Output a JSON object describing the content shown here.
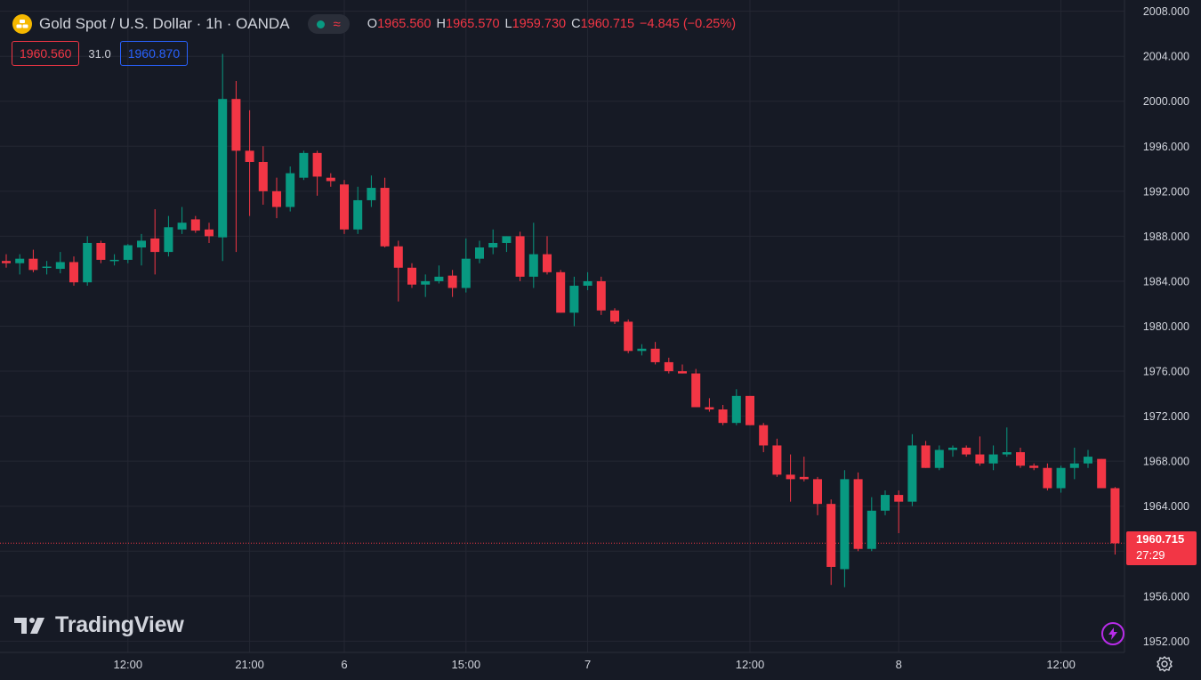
{
  "symbol": {
    "title": "Gold Spot / U.S. Dollar · 1h · OANDA",
    "status_icon": "green-dot-icon",
    "wave_icon": "wave-icon"
  },
  "ohlc": {
    "o_label": "O",
    "o_value": "1965.560",
    "h_label": "H",
    "h_value": "1965.570",
    "l_label": "L",
    "l_value": "1959.730",
    "c_label": "C",
    "c_value": "1960.715",
    "change": "−4.845 (−0.25%)"
  },
  "quote": {
    "bid": "1960.560",
    "spread": "31.0",
    "ask": "1960.870"
  },
  "last_price": {
    "value": "1960.715",
    "countdown": "27:29"
  },
  "brand": {
    "logo_text": "TradingView"
  },
  "colors": {
    "background": "#161a25",
    "up": "#089981",
    "down": "#f23645",
    "grid": "#242733",
    "text": "#d1d4dc",
    "ask": "#2962ff"
  },
  "chart_data": {
    "type": "candlestick",
    "timeframe": "1h",
    "y_axis_ticks": [
      "1952.000",
      "1956.000",
      "1960.000",
      "1964.000",
      "1968.000",
      "1972.000",
      "1976.000",
      "1980.000",
      "1984.000",
      "1988.000",
      "1992.000",
      "1996.000",
      "2000.000",
      "2004.000",
      "2008.000"
    ],
    "ylim": [
      1951.0,
      2009.0
    ],
    "x_axis_labels": [
      {
        "label": "12:00",
        "index": 9
      },
      {
        "label": "21:00",
        "index": 18
      },
      {
        "label": "6",
        "index": 25
      },
      {
        "label": "15:00",
        "index": 34
      },
      {
        "label": "7",
        "index": 43
      },
      {
        "label": "12:00",
        "index": 55
      },
      {
        "label": "8",
        "index": 66
      },
      {
        "label": "12:00",
        "index": 78
      }
    ],
    "grid": true,
    "last_price_line": 1960.715,
    "candles": [
      {
        "o": 1985.8,
        "h": 1986.4,
        "l": 1985.2,
        "c": 1985.6
      },
      {
        "o": 1985.6,
        "h": 1986.4,
        "l": 1984.6,
        "c": 1986.0
      },
      {
        "o": 1986.0,
        "h": 1986.8,
        "l": 1984.8,
        "c": 1985.0
      },
      {
        "o": 1985.2,
        "h": 1985.8,
        "l": 1984.6,
        "c": 1985.3
      },
      {
        "o": 1985.1,
        "h": 1986.6,
        "l": 1984.7,
        "c": 1985.7
      },
      {
        "o": 1985.7,
        "h": 1986.2,
        "l": 1983.6,
        "c": 1983.9
      },
      {
        "o": 1983.9,
        "h": 1988.0,
        "l": 1983.6,
        "c": 1987.4
      },
      {
        "o": 1987.4,
        "h": 1987.6,
        "l": 1985.6,
        "c": 1985.9
      },
      {
        "o": 1985.8,
        "h": 1986.4,
        "l": 1985.4,
        "c": 1985.9
      },
      {
        "o": 1985.9,
        "h": 1987.3,
        "l": 1985.6,
        "c": 1987.2
      },
      {
        "o": 1987.0,
        "h": 1988.2,
        "l": 1985.4,
        "c": 1987.6
      },
      {
        "o": 1987.8,
        "h": 1990.4,
        "l": 1984.6,
        "c": 1986.6
      },
      {
        "o": 1986.6,
        "h": 1989.8,
        "l": 1986.2,
        "c": 1988.8
      },
      {
        "o": 1988.6,
        "h": 1990.6,
        "l": 1988.2,
        "c": 1989.2
      },
      {
        "o": 1989.5,
        "h": 1989.8,
        "l": 1988.3,
        "c": 1988.5
      },
      {
        "o": 1988.6,
        "h": 1989.2,
        "l": 1987.4,
        "c": 1988.0
      },
      {
        "o": 1987.9,
        "h": 2004.2,
        "l": 1985.8,
        "c": 2000.2
      },
      {
        "o": 2000.2,
        "h": 2001.8,
        "l": 1986.6,
        "c": 1995.6
      },
      {
        "o": 1995.6,
        "h": 1999.2,
        "l": 1989.8,
        "c": 1994.6
      },
      {
        "o": 1994.6,
        "h": 1996.0,
        "l": 1990.8,
        "c": 1992.0
      },
      {
        "o": 1992.0,
        "h": 1993.2,
        "l": 1989.6,
        "c": 1990.6
      },
      {
        "o": 1990.6,
        "h": 1994.2,
        "l": 1990.2,
        "c": 1993.6
      },
      {
        "o": 1993.2,
        "h": 1995.6,
        "l": 1993.0,
        "c": 1995.4
      },
      {
        "o": 1995.4,
        "h": 1995.6,
        "l": 1991.6,
        "c": 1993.3
      },
      {
        "o": 1993.2,
        "h": 1993.6,
        "l": 1992.4,
        "c": 1992.9
      },
      {
        "o": 1992.6,
        "h": 1993.0,
        "l": 1988.2,
        "c": 1988.6
      },
      {
        "o": 1988.6,
        "h": 1992.4,
        "l": 1988.2,
        "c": 1991.2
      },
      {
        "o": 1991.2,
        "h": 1993.4,
        "l": 1990.6,
        "c": 1992.3
      },
      {
        "o": 1992.3,
        "h": 1993.2,
        "l": 1987.0,
        "c": 1987.1
      },
      {
        "o": 1987.1,
        "h": 1987.6,
        "l": 1982.2,
        "c": 1985.2
      },
      {
        "o": 1985.2,
        "h": 1985.6,
        "l": 1983.4,
        "c": 1983.7
      },
      {
        "o": 1983.7,
        "h": 1984.6,
        "l": 1982.6,
        "c": 1984.0
      },
      {
        "o": 1984.0,
        "h": 1985.4,
        "l": 1983.8,
        "c": 1984.4
      },
      {
        "o": 1984.5,
        "h": 1985.0,
        "l": 1982.6,
        "c": 1983.4
      },
      {
        "o": 1983.4,
        "h": 1987.8,
        "l": 1983.0,
        "c": 1986.0
      },
      {
        "o": 1986.0,
        "h": 1987.6,
        "l": 1985.6,
        "c": 1987.0
      },
      {
        "o": 1987.0,
        "h": 1988.6,
        "l": 1986.4,
        "c": 1987.4
      },
      {
        "o": 1987.4,
        "h": 1988.0,
        "l": 1986.6,
        "c": 1988.0
      },
      {
        "o": 1988.0,
        "h": 1988.4,
        "l": 1984.0,
        "c": 1984.4
      },
      {
        "o": 1984.4,
        "h": 1989.2,
        "l": 1983.4,
        "c": 1986.4
      },
      {
        "o": 1986.4,
        "h": 1988.0,
        "l": 1984.6,
        "c": 1984.8
      },
      {
        "o": 1984.8,
        "h": 1985.0,
        "l": 1981.2,
        "c": 1981.2
      },
      {
        "o": 1981.2,
        "h": 1984.4,
        "l": 1980.0,
        "c": 1983.6
      },
      {
        "o": 1983.6,
        "h": 1984.8,
        "l": 1983.2,
        "c": 1984.0
      },
      {
        "o": 1984.0,
        "h": 1984.4,
        "l": 1981.0,
        "c": 1981.4
      },
      {
        "o": 1981.4,
        "h": 1981.6,
        "l": 1980.2,
        "c": 1980.4
      },
      {
        "o": 1980.4,
        "h": 1980.6,
        "l": 1977.6,
        "c": 1977.8
      },
      {
        "o": 1977.8,
        "h": 1978.4,
        "l": 1977.4,
        "c": 1978.0
      },
      {
        "o": 1978.0,
        "h": 1978.6,
        "l": 1976.6,
        "c": 1976.8
      },
      {
        "o": 1976.8,
        "h": 1977.2,
        "l": 1975.8,
        "c": 1976.0
      },
      {
        "o": 1976.0,
        "h": 1976.6,
        "l": 1975.8,
        "c": 1975.8
      },
      {
        "o": 1975.8,
        "h": 1976.2,
        "l": 1972.8,
        "c": 1972.8
      },
      {
        "o": 1972.8,
        "h": 1973.6,
        "l": 1972.4,
        "c": 1972.6
      },
      {
        "o": 1972.6,
        "h": 1973.0,
        "l": 1971.2,
        "c": 1971.4
      },
      {
        "o": 1971.4,
        "h": 1974.4,
        "l": 1971.2,
        "c": 1973.8
      },
      {
        "o": 1973.8,
        "h": 1973.8,
        "l": 1971.2,
        "c": 1971.2
      },
      {
        "o": 1971.2,
        "h": 1971.4,
        "l": 1968.8,
        "c": 1969.4
      },
      {
        "o": 1969.4,
        "h": 1970.0,
        "l": 1966.6,
        "c": 1966.8
      },
      {
        "o": 1966.8,
        "h": 1968.6,
        "l": 1964.4,
        "c": 1966.4
      },
      {
        "o": 1966.6,
        "h": 1968.4,
        "l": 1966.2,
        "c": 1966.4
      },
      {
        "o": 1966.4,
        "h": 1966.6,
        "l": 1963.2,
        "c": 1964.2
      },
      {
        "o": 1964.2,
        "h": 1964.6,
        "l": 1957.0,
        "c": 1958.6
      },
      {
        "o": 1958.4,
        "h": 1967.2,
        "l": 1956.8,
        "c": 1966.4
      },
      {
        "o": 1966.4,
        "h": 1967.0,
        "l": 1960.0,
        "c": 1960.2
      },
      {
        "o": 1960.2,
        "h": 1964.8,
        "l": 1960.0,
        "c": 1963.6
      },
      {
        "o": 1963.6,
        "h": 1965.4,
        "l": 1963.2,
        "c": 1965.0
      },
      {
        "o": 1965.0,
        "h": 1965.4,
        "l": 1961.6,
        "c": 1964.4
      },
      {
        "o": 1964.4,
        "h": 1970.4,
        "l": 1964.0,
        "c": 1969.4
      },
      {
        "o": 1969.4,
        "h": 1969.8,
        "l": 1967.4,
        "c": 1967.4
      },
      {
        "o": 1967.4,
        "h": 1969.4,
        "l": 1967.2,
        "c": 1969.0
      },
      {
        "o": 1969.0,
        "h": 1969.4,
        "l": 1968.4,
        "c": 1969.2
      },
      {
        "o": 1969.2,
        "h": 1969.4,
        "l": 1968.4,
        "c": 1968.6
      },
      {
        "o": 1968.6,
        "h": 1970.2,
        "l": 1967.6,
        "c": 1967.8
      },
      {
        "o": 1967.8,
        "h": 1969.4,
        "l": 1967.2,
        "c": 1968.6
      },
      {
        "o": 1968.6,
        "h": 1971.0,
        "l": 1968.4,
        "c": 1968.8
      },
      {
        "o": 1968.8,
        "h": 1969.2,
        "l": 1967.4,
        "c": 1967.6
      },
      {
        "o": 1967.6,
        "h": 1967.8,
        "l": 1967.2,
        "c": 1967.4
      },
      {
        "o": 1967.4,
        "h": 1967.8,
        "l": 1965.4,
        "c": 1965.6
      },
      {
        "o": 1965.6,
        "h": 1967.6,
        "l": 1965.2,
        "c": 1967.4
      },
      {
        "o": 1967.4,
        "h": 1969.2,
        "l": 1966.4,
        "c": 1967.8
      },
      {
        "o": 1967.8,
        "h": 1969.0,
        "l": 1967.4,
        "c": 1968.4
      },
      {
        "o": 1968.2,
        "h": 1968.2,
        "l": 1965.6,
        "c": 1965.6
      },
      {
        "o": 1965.6,
        "h": 1965.7,
        "l": 1959.7,
        "c": 1960.7
      }
    ]
  }
}
